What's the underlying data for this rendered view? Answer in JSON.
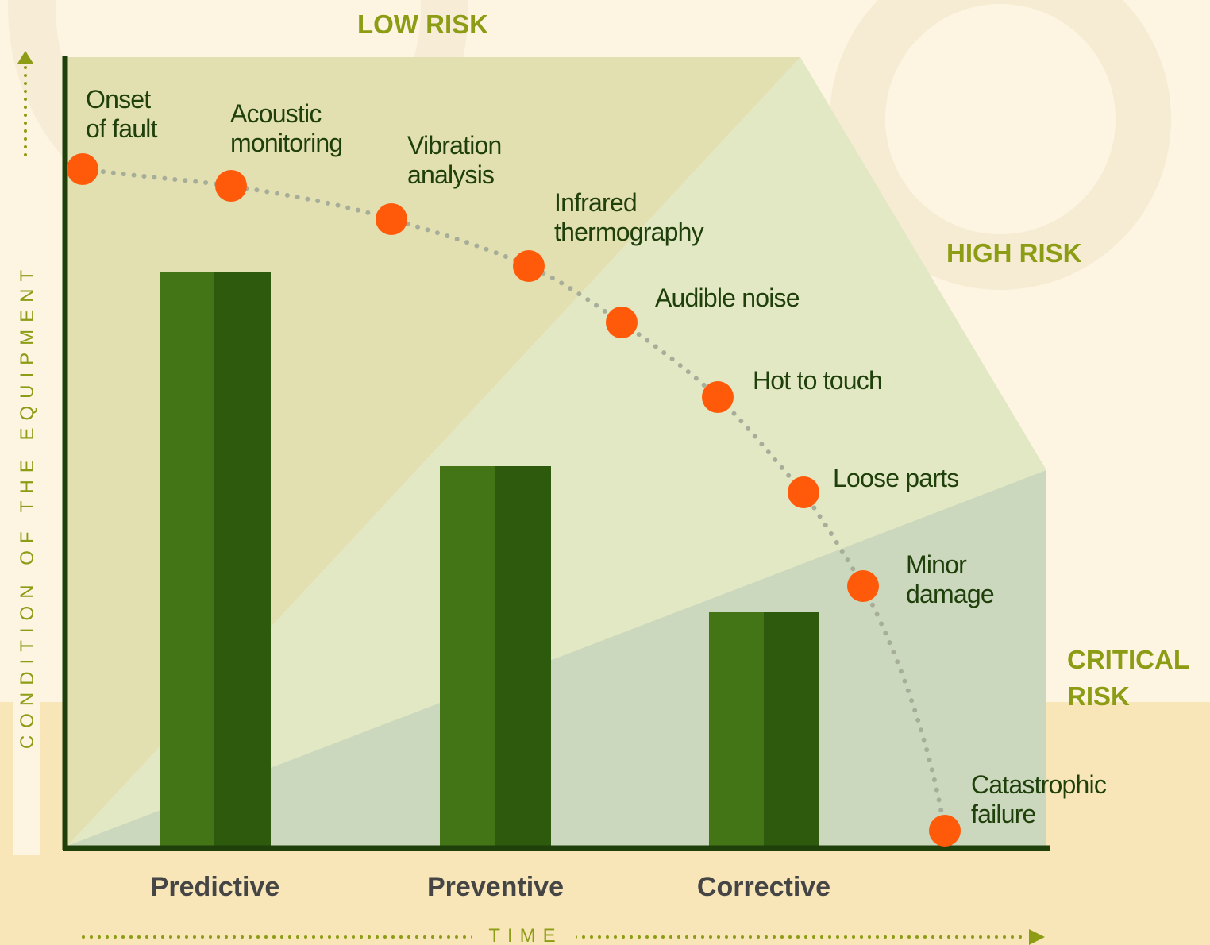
{
  "zones": [
    {
      "lines": [
        "LOW RISK"
      ]
    },
    {
      "lines": [
        "HIGH RISK"
      ]
    },
    {
      "lines": [
        "CRITICAL",
        "RISK"
      ]
    }
  ],
  "y_axis_title": "CONDITION OF THE EQUIPMENT",
  "x_axis_title": "TIME",
  "categories": [
    "Predictive",
    "Preventive",
    "Corrective"
  ],
  "stages": [
    {
      "lines": [
        "Onset",
        "of fault"
      ]
    },
    {
      "lines": [
        "Acoustic",
        "monitoring"
      ]
    },
    {
      "lines": [
        "Vibration",
        "analysis"
      ]
    },
    {
      "lines": [
        "Infrared",
        "thermography"
      ]
    },
    {
      "lines": [
        "Audible noise"
      ]
    },
    {
      "lines": [
        "Hot to touch"
      ]
    },
    {
      "lines": [
        "Loose parts"
      ]
    },
    {
      "lines": [
        "Minor",
        "damage"
      ]
    },
    {
      "lines": [
        "Catastrophic",
        "failure"
      ]
    }
  ]
}
